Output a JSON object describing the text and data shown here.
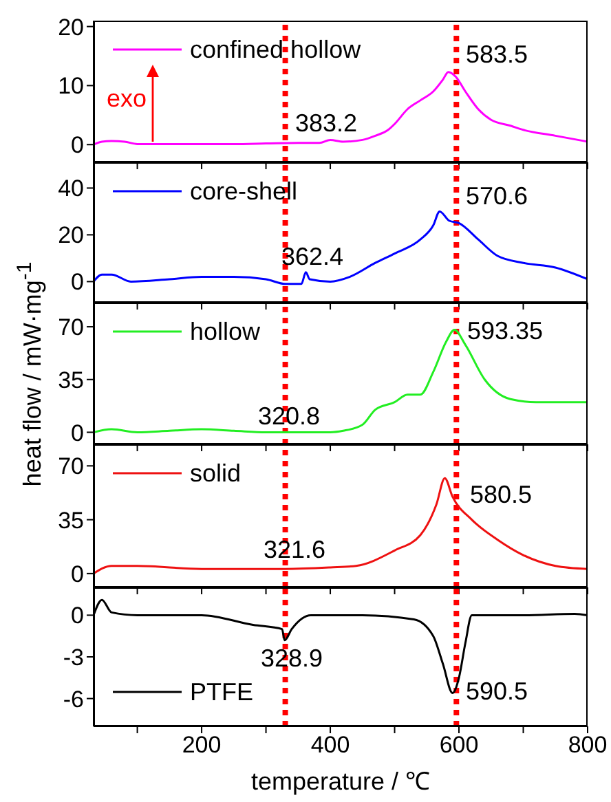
{
  "chart_data": [
    {
      "type": "line",
      "x": [
        32,
        45,
        60,
        80,
        100,
        150,
        200,
        250,
        300,
        350,
        383,
        400,
        420,
        450,
        470,
        490,
        500,
        520,
        540,
        560,
        575,
        583.5,
        595,
        610,
        630,
        650,
        680,
        700,
        750,
        800
      ],
      "series": [
        {
          "name": "confined hollow",
          "color": "#ff00ff",
          "values": [
            0,
            0.5,
            0.6,
            0.5,
            0.1,
            0.1,
            0.1,
            0.1,
            0.2,
            0.3,
            0.3,
            0.8,
            0.5,
            0.8,
            1.5,
            2.5,
            3.5,
            6,
            7.5,
            9,
            11,
            12.3,
            11.5,
            9,
            6,
            4.2,
            3.2,
            2.5,
            1.5,
            0.5
          ]
        }
      ],
      "xlim": [
        32,
        800
      ],
      "xticks": [
        {
          "value": 100,
          "label": null
        },
        {
          "value": 200,
          "label": null
        },
        {
          "value": 300,
          "label": null
        },
        {
          "value": 400,
          "label": null
        },
        {
          "value": 500,
          "label": null
        },
        {
          "value": 600,
          "label": null
        },
        {
          "value": 700,
          "label": null
        },
        {
          "value": 800,
          "label": null
        }
      ],
      "ylim": [
        -3,
        21
      ],
      "yticks": [
        0,
        10,
        20
      ],
      "tick_labels": "y",
      "grid": false,
      "legend": "top left",
      "marker": "none",
      "line_style": "solid",
      "ref_lines": [
        {
          "axis": "x",
          "value": 330,
          "color": "#ff0000",
          "line_style": "dotted"
        },
        {
          "axis": "x",
          "value": 596,
          "color": "#ff0000",
          "line_style": "dotted"
        }
      ],
      "annotations": [
        "383.2",
        "583.5",
        "exo"
      ]
    },
    {
      "type": "line",
      "x": [
        32,
        45,
        60,
        90,
        150,
        200,
        250,
        300,
        330,
        355,
        362,
        368,
        400,
        430,
        470,
        500,
        540,
        560,
        570,
        585,
        600,
        630,
        660,
        700,
        750,
        800
      ],
      "series": [
        {
          "name": "core-shell",
          "color": "#0000ff",
          "values": [
            0,
            3,
            3,
            0,
            1,
            2,
            2,
            1,
            -1,
            -1,
            4,
            1,
            0,
            2,
            8,
            12,
            18,
            24,
            30,
            26,
            25,
            18,
            11,
            8,
            6,
            1
          ]
        }
      ],
      "xlim": [
        32,
        800
      ],
      "xticks": [
        {
          "value": 100,
          "label": null
        },
        {
          "value": 200,
          "label": null
        },
        {
          "value": 300,
          "label": null
        },
        {
          "value": 400,
          "label": null
        },
        {
          "value": 500,
          "label": null
        },
        {
          "value": 600,
          "label": null
        },
        {
          "value": 700,
          "label": null
        },
        {
          "value": 800,
          "label": null
        }
      ],
      "ylim": [
        -9,
        51
      ],
      "yticks": [
        0,
        20,
        40
      ],
      "tick_labels": "y",
      "grid": false,
      "legend": "top left",
      "marker": "none",
      "line_style": "solid",
      "ref_lines": [
        {
          "axis": "x",
          "value": 330,
          "color": "#ff0000",
          "line_style": "dotted"
        },
        {
          "axis": "x",
          "value": 596,
          "color": "#ff0000",
          "line_style": "dotted"
        }
      ],
      "annotations": [
        "362.4",
        "570.6"
      ]
    },
    {
      "type": "line",
      "x": [
        32,
        60,
        100,
        150,
        200,
        250,
        300,
        350,
        400,
        420,
        450,
        470,
        500,
        520,
        540,
        560,
        580,
        593,
        610,
        640,
        680,
        720,
        800
      ],
      "series": [
        {
          "name": "hollow",
          "color": "#22ee22",
          "values": [
            0,
            2,
            0,
            1,
            2,
            1,
            0,
            0,
            0,
            1,
            5,
            15,
            20,
            25,
            25,
            40,
            60,
            68,
            58,
            35,
            22,
            20,
            20
          ]
        }
      ],
      "xlim": [
        32,
        800
      ],
      "xticks": [
        {
          "value": 100,
          "label": null
        },
        {
          "value": 200,
          "label": null
        },
        {
          "value": 300,
          "label": null
        },
        {
          "value": 400,
          "label": null
        },
        {
          "value": 500,
          "label": null
        },
        {
          "value": 600,
          "label": null
        },
        {
          "value": 700,
          "label": null
        },
        {
          "value": 800,
          "label": null
        }
      ],
      "ylim": [
        -8,
        86
      ],
      "yticks": [
        0,
        35,
        70
      ],
      "tick_labels": "y",
      "ylabel": "heat flow / mW·mg$^{-1}$",
      "grid": false,
      "legend": "top left",
      "marker": "none",
      "line_style": "solid",
      "ref_lines": [
        {
          "axis": "x",
          "value": 330,
          "color": "#ff0000",
          "line_style": "dotted"
        },
        {
          "axis": "x",
          "value": 596,
          "color": "#ff0000",
          "line_style": "dotted"
        }
      ],
      "annotations": [
        "320.8",
        "593.35"
      ]
    },
    {
      "type": "line",
      "x": [
        32,
        60,
        100,
        200,
        330,
        400,
        440,
        500,
        540,
        565,
        578,
        590,
        620,
        660,
        700,
        750,
        800
      ],
      "series": [
        {
          "name": "solid",
          "color": "#ee1111",
          "values": [
            0,
            5,
            5,
            3,
            3,
            4,
            5,
            15,
            25,
            45,
            62,
            50,
            35,
            22,
            12,
            5,
            3
          ]
        }
      ],
      "xlim": [
        32,
        800
      ],
      "xticks": [
        {
          "value": 100,
          "label": null
        },
        {
          "value": 200,
          "label": null
        },
        {
          "value": 300,
          "label": null
        },
        {
          "value": 400,
          "label": null
        },
        {
          "value": 500,
          "label": null
        },
        {
          "value": 600,
          "label": null
        },
        {
          "value": 700,
          "label": null
        },
        {
          "value": 800,
          "label": null
        }
      ],
      "ylim": [
        -9,
        84
      ],
      "yticks": [
        0,
        35,
        70
      ],
      "tick_labels": "y",
      "grid": false,
      "legend": "top left",
      "marker": "none",
      "line_style": "solid",
      "ref_lines": [
        {
          "axis": "x",
          "value": 330,
          "color": "#ff0000",
          "line_style": "dotted"
        },
        {
          "axis": "x",
          "value": 596,
          "color": "#ff0000",
          "line_style": "dotted"
        }
      ],
      "annotations": [
        "321.6",
        "580.5"
      ]
    },
    {
      "type": "line",
      "x": [
        32,
        45,
        60,
        100,
        200,
        280,
        325,
        329,
        340,
        370,
        450,
        530,
        560,
        575,
        590,
        600,
        610,
        620,
        700,
        780,
        800
      ],
      "series": [
        {
          "name": "PTFE",
          "color": "#000000",
          "values": [
            0,
            1.1,
            0.2,
            0,
            0,
            -0.7,
            -1,
            -1.8,
            -1,
            0,
            0,
            -0.3,
            -1.5,
            -3.5,
            -5.6,
            -4.5,
            -2,
            0,
            0,
            0.1,
            0
          ]
        }
      ],
      "xlim": [
        32,
        800
      ],
      "xticks": [
        {
          "value": 100,
          "label": null
        },
        200,
        {
          "value": 300,
          "label": null
        },
        400,
        {
          "value": 500,
          "label": null
        },
        600,
        {
          "value": 700,
          "label": null
        },
        800
      ],
      "ylim": [
        -8,
        2
      ],
      "yticks": [
        -6,
        -3,
        0
      ],
      "xlabel": "temperature / ℃",
      "grid": false,
      "legend": "bottom left",
      "marker": "none",
      "line_style": "solid",
      "ref_lines": [
        {
          "axis": "x",
          "value": 330,
          "color": "#ff0000",
          "line_style": "dotted"
        },
        {
          "axis": "x",
          "value": 596,
          "color": "#ff0000",
          "line_style": "dotted"
        }
      ],
      "annotations": [
        "328.9",
        "590.5"
      ]
    }
  ]
}
